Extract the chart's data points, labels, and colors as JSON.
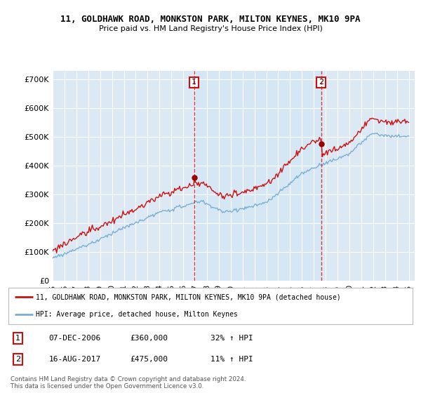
{
  "title1": "11, GOLDHAWK ROAD, MONKSTON PARK, MILTON KEYNES, MK10 9PA",
  "title2": "Price paid vs. HM Land Registry's House Price Index (HPI)",
  "bg_color": "#dce9f5",
  "highlight_bg": "#d0e4f5",
  "hpi_color": "#7aafd4",
  "sale_color": "#cc1111",
  "marker_color": "#990000",
  "vline_color": "#cc1111",
  "ylim": [
    0,
    730000
  ],
  "yticks": [
    0,
    100000,
    200000,
    300000,
    400000,
    500000,
    600000,
    700000
  ],
  "ytick_labels": [
    "£0",
    "£100K",
    "£200K",
    "£300K",
    "£400K",
    "£500K",
    "£600K",
    "£700K"
  ],
  "sale1_year": 2006.92,
  "sale1_price": 360000,
  "sale1_label": "1",
  "sale2_year": 2017.62,
  "sale2_price": 475000,
  "sale2_label": "2",
  "legend_line1": "11, GOLDHAWK ROAD, MONKSTON PARK, MILTON KEYNES, MK10 9PA (detached house)",
  "legend_line2": "HPI: Average price, detached house, Milton Keynes",
  "table_row1": [
    "1",
    "07-DEC-2006",
    "£360,000",
    "32% ↑ HPI"
  ],
  "table_row2": [
    "2",
    "16-AUG-2017",
    "£475,000",
    "11% ↑ HPI"
  ],
  "footer": "Contains HM Land Registry data © Crown copyright and database right 2024.\nThis data is licensed under the Open Government Licence v3.0.",
  "xmin": 1995,
  "xmax": 2025.5,
  "figsize": [
    6.0,
    5.6
  ],
  "dpi": 100
}
